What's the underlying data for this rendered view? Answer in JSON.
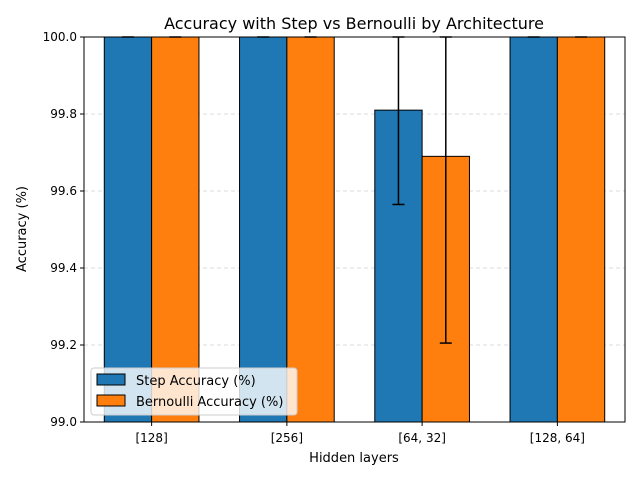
{
  "chart_data": {
    "type": "bar",
    "title": "Accuracy with Step vs Bernoulli by Architecture",
    "xlabel": "Hidden layers",
    "ylabel": "Accuracy (%)",
    "categories": [
      "[128]",
      "[256]",
      "[64, 32]",
      "[128, 64]"
    ],
    "ylim": [
      99.0,
      100.0
    ],
    "yticks": [
      99.0,
      99.2,
      99.4,
      99.6,
      99.8,
      100.0
    ],
    "ytick_labels": [
      "99.0",
      "99.2",
      "99.4",
      "99.6",
      "99.8",
      "100.0"
    ],
    "grid": "horizontal dashed",
    "legend_position": "lower-left",
    "series": [
      {
        "name": "Step Accuracy (%)",
        "color": "#1f77b4",
        "values": [
          100.0,
          100.0,
          99.81,
          100.0
        ],
        "error": [
          0,
          0,
          0.245,
          0
        ]
      },
      {
        "name": "Bernoulli Accuracy (%)",
        "color": "#ff7f0e",
        "values": [
          100.0,
          100.0,
          99.69,
          100.0
        ],
        "error": [
          0,
          0,
          0.485,
          0
        ]
      }
    ]
  }
}
